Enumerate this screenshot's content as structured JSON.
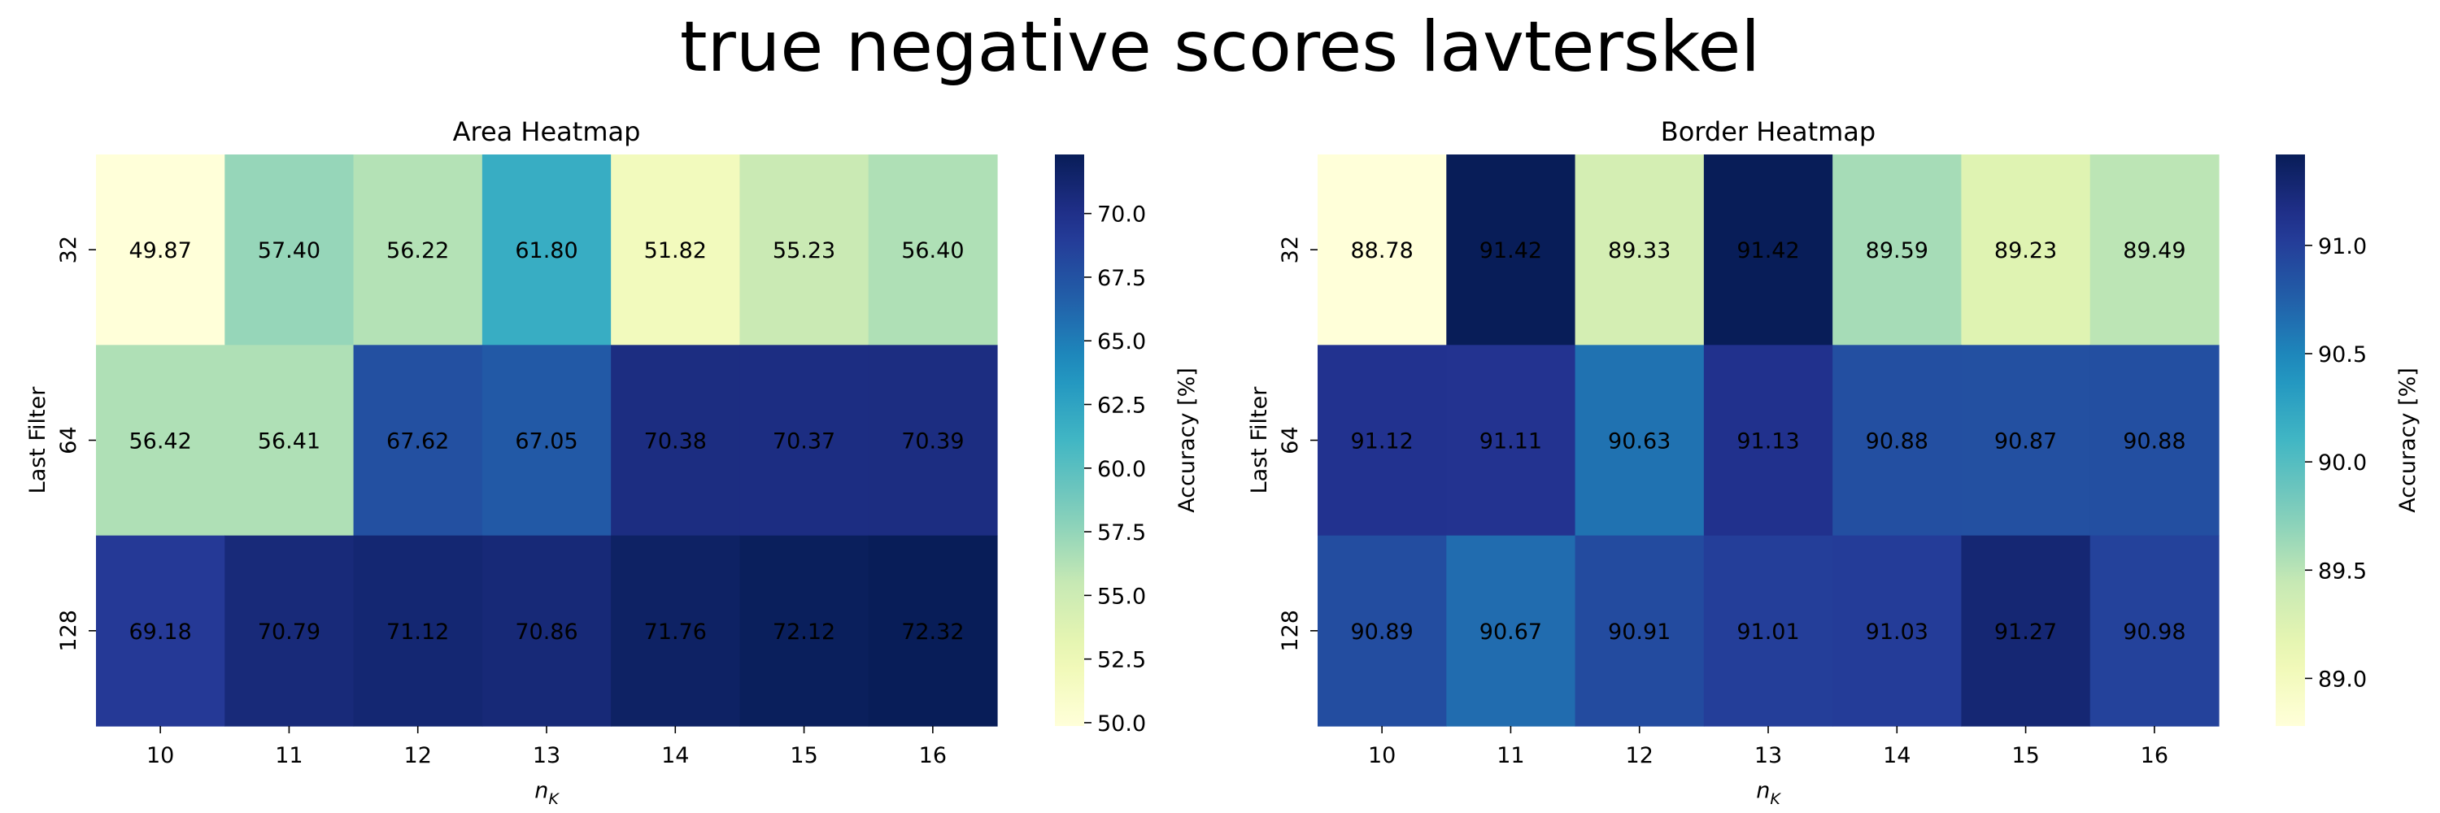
{
  "figure": {
    "suptitle": "true negative scores lavterskel"
  },
  "chart_data": [
    {
      "type": "heatmap",
      "title": "Area Heatmap",
      "xlabel": "n_K",
      "ylabel": "Last Filter",
      "x_categories": [
        "10",
        "11",
        "12",
        "13",
        "14",
        "15",
        "16"
      ],
      "y_categories": [
        "32",
        "64",
        "128"
      ],
      "values": [
        [
          49.87,
          57.4,
          56.22,
          61.8,
          51.82,
          55.23,
          56.4
        ],
        [
          56.42,
          56.41,
          67.62,
          67.05,
          70.38,
          70.37,
          70.39
        ],
        [
          69.18,
          70.79,
          71.12,
          70.86,
          71.76,
          72.12,
          72.32
        ]
      ],
      "value_labels": [
        [
          "49.87",
          "57.40",
          "56.22",
          "61.80",
          "51.82",
          "55.23",
          "56.40"
        ],
        [
          "56.42",
          "56.41",
          "67.62",
          "67.05",
          "70.38",
          "70.37",
          "70.39"
        ],
        [
          "69.18",
          "70.79",
          "71.12",
          "70.86",
          "71.76",
          "72.12",
          "72.32"
        ]
      ],
      "colormap": "YlGnBu",
      "vmin": 49.87,
      "vmax": 72.32,
      "colorbar": {
        "label": "Accuracy [%]",
        "ticks": [
          50.0,
          52.5,
          55.0,
          57.5,
          60.0,
          62.5,
          65.0,
          67.5,
          70.0
        ],
        "tick_labels": [
          "50.0",
          "52.5",
          "55.0",
          "57.5",
          "60.0",
          "62.5",
          "65.0",
          "67.5",
          "70.0"
        ]
      }
    },
    {
      "type": "heatmap",
      "title": "Border Heatmap",
      "xlabel": "n_K",
      "ylabel": "Last Filter",
      "x_categories": [
        "10",
        "11",
        "12",
        "13",
        "14",
        "15",
        "16"
      ],
      "y_categories": [
        "32",
        "64",
        "128"
      ],
      "values": [
        [
          88.78,
          91.42,
          89.33,
          91.42,
          89.59,
          89.23,
          89.49
        ],
        [
          91.12,
          91.11,
          90.63,
          91.13,
          90.88,
          90.87,
          90.88
        ],
        [
          90.89,
          90.67,
          90.91,
          91.01,
          91.03,
          91.27,
          90.98
        ]
      ],
      "value_labels": [
        [
          "88.78",
          "91.42",
          "89.33",
          "91.42",
          "89.59",
          "89.23",
          "89.49"
        ],
        [
          "91.12",
          "91.11",
          "90.63",
          "91.13",
          "90.88",
          "90.87",
          "90.88"
        ],
        [
          "90.89",
          "90.67",
          "90.91",
          "91.01",
          "91.03",
          "91.27",
          "90.98"
        ]
      ],
      "colormap": "YlGnBu",
      "vmin": 88.78,
      "vmax": 91.42,
      "colorbar": {
        "label": "Accuracy [%]",
        "ticks": [
          89.0,
          89.5,
          90.0,
          90.5,
          91.0
        ],
        "tick_labels": [
          "89.0",
          "89.5",
          "90.0",
          "90.5",
          "91.0"
        ]
      }
    }
  ]
}
